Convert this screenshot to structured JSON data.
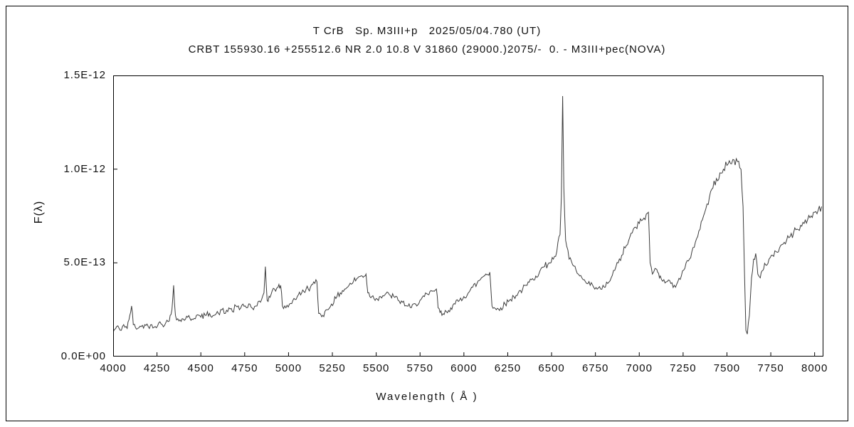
{
  "header": {
    "title": "T CrB   Sp. M3III+p   2025/05/04.780 (UT)",
    "subtitle": "CRBT 155930.16 +255512.6 NR 2.0 10.8 V 31860 (29000.)2075/-  0. - M3III+pec(NOVA)"
  },
  "axes": {
    "x_label": "Wavelength ( Å )",
    "y_label": "F(λ)",
    "x_ticks": [
      4000,
      4250,
      4500,
      4750,
      5000,
      5250,
      5500,
      5750,
      6000,
      6250,
      6500,
      6750,
      7000,
      7250,
      7500,
      7750,
      8000
    ],
    "y_ticks": [
      0,
      0.5,
      1.0,
      1.5
    ],
    "y_tick_labels": [
      "0.0E+00",
      "5.0E-13",
      "1.0E-12",
      "1.5E-12"
    ]
  },
  "chart_data": {
    "type": "line",
    "title": "T CrB   Sp. M3III+p   2025/05/04.780 (UT)",
    "subtitle": "CRBT 155930.16 +255512.6 NR 2.0 10.8 V 31860 (29000.)2075/-  0. - M3III+pec(NOVA)",
    "xlabel": "Wavelength (Å)",
    "ylabel": "F(λ)",
    "xlim": [
      4000,
      8050
    ],
    "ylim_scaled": [
      0,
      1.5
    ],
    "y_scale": 1e-12,
    "grid": false,
    "legend": "none",
    "line_color": "#3c3c3c",
    "noise_amplitude": 0.013,
    "noise_seed": 42,
    "sample_step": 6,
    "annotations": [
      "H-alpha emission spike near 6563 Å reaching ~1.39e-12",
      "TiO band-head sawtooth drops near 4960, 5170, 5450, 5850, 6160, 7055 Å",
      "Deep absorption near 7610 Å down to ~1.2e-13"
    ],
    "series": [
      {
        "name": "spectrum",
        "points": [
          [
            4000,
            0.13
          ],
          [
            4020,
            0.16
          ],
          [
            4040,
            0.14
          ],
          [
            4060,
            0.17
          ],
          [
            4080,
            0.15
          ],
          [
            4095,
            0.22
          ],
          [
            4105,
            0.27
          ],
          [
            4115,
            0.17
          ],
          [
            4140,
            0.15
          ],
          [
            4160,
            0.16
          ],
          [
            4180,
            0.17
          ],
          [
            4200,
            0.16
          ],
          [
            4220,
            0.17
          ],
          [
            4240,
            0.16
          ],
          [
            4260,
            0.18
          ],
          [
            4280,
            0.17
          ],
          [
            4300,
            0.18
          ],
          [
            4320,
            0.19
          ],
          [
            4335,
            0.25
          ],
          [
            4345,
            0.38
          ],
          [
            4355,
            0.22
          ],
          [
            4375,
            0.19
          ],
          [
            4400,
            0.2
          ],
          [
            4425,
            0.21
          ],
          [
            4450,
            0.2
          ],
          [
            4475,
            0.22
          ],
          [
            4500,
            0.21
          ],
          [
            4525,
            0.22
          ],
          [
            4550,
            0.23
          ],
          [
            4575,
            0.22
          ],
          [
            4600,
            0.23
          ],
          [
            4620,
            0.25
          ],
          [
            4640,
            0.23
          ],
          [
            4660,
            0.26
          ],
          [
            4680,
            0.24
          ],
          [
            4700,
            0.27
          ],
          [
            4720,
            0.25
          ],
          [
            4740,
            0.28
          ],
          [
            4760,
            0.26
          ],
          [
            4780,
            0.28
          ],
          [
            4800,
            0.25
          ],
          [
            4820,
            0.27
          ],
          [
            4840,
            0.29
          ],
          [
            4860,
            0.34
          ],
          [
            4868,
            0.48
          ],
          [
            4878,
            0.3
          ],
          [
            4900,
            0.33
          ],
          [
            4920,
            0.36
          ],
          [
            4940,
            0.37
          ],
          [
            4955,
            0.38
          ],
          [
            4965,
            0.27
          ],
          [
            4985,
            0.26
          ],
          [
            5005,
            0.28
          ],
          [
            5025,
            0.3
          ],
          [
            5050,
            0.32
          ],
          [
            5075,
            0.34
          ],
          [
            5100,
            0.36
          ],
          [
            5125,
            0.37
          ],
          [
            5150,
            0.39
          ],
          [
            5162,
            0.4
          ],
          [
            5172,
            0.23
          ],
          [
            5195,
            0.22
          ],
          [
            5220,
            0.25
          ],
          [
            5245,
            0.28
          ],
          [
            5270,
            0.31
          ],
          [
            5295,
            0.34
          ],
          [
            5320,
            0.36
          ],
          [
            5345,
            0.38
          ],
          [
            5370,
            0.4
          ],
          [
            5395,
            0.42
          ],
          [
            5420,
            0.43
          ],
          [
            5442,
            0.44
          ],
          [
            5452,
            0.34
          ],
          [
            5475,
            0.32
          ],
          [
            5500,
            0.31
          ],
          [
            5525,
            0.32
          ],
          [
            5550,
            0.33
          ],
          [
            5575,
            0.33
          ],
          [
            5600,
            0.32
          ],
          [
            5625,
            0.3
          ],
          [
            5650,
            0.29
          ],
          [
            5675,
            0.27
          ],
          [
            5700,
            0.26
          ],
          [
            5725,
            0.28
          ],
          [
            5750,
            0.3
          ],
          [
            5775,
            0.32
          ],
          [
            5800,
            0.33
          ],
          [
            5825,
            0.35
          ],
          [
            5843,
            0.36
          ],
          [
            5853,
            0.26
          ],
          [
            5875,
            0.22
          ],
          [
            5900,
            0.24
          ],
          [
            5925,
            0.26
          ],
          [
            5950,
            0.28
          ],
          [
            5975,
            0.3
          ],
          [
            6000,
            0.32
          ],
          [
            6025,
            0.34
          ],
          [
            6050,
            0.37
          ],
          [
            6075,
            0.39
          ],
          [
            6100,
            0.42
          ],
          [
            6125,
            0.44
          ],
          [
            6148,
            0.45
          ],
          [
            6160,
            0.27
          ],
          [
            6185,
            0.25
          ],
          [
            6210,
            0.26
          ],
          [
            6235,
            0.28
          ],
          [
            6260,
            0.3
          ],
          [
            6285,
            0.32
          ],
          [
            6310,
            0.34
          ],
          [
            6335,
            0.36
          ],
          [
            6360,
            0.38
          ],
          [
            6385,
            0.41
          ],
          [
            6410,
            0.43
          ],
          [
            6435,
            0.46
          ],
          [
            6460,
            0.48
          ],
          [
            6485,
            0.5
          ],
          [
            6510,
            0.52
          ],
          [
            6530,
            0.56
          ],
          [
            6548,
            0.65
          ],
          [
            6556,
            0.85
          ],
          [
            6563,
            1.39
          ],
          [
            6570,
            0.9
          ],
          [
            6580,
            0.62
          ],
          [
            6600,
            0.52
          ],
          [
            6620,
            0.49
          ],
          [
            6640,
            0.46
          ],
          [
            6660,
            0.43
          ],
          [
            6680,
            0.41
          ],
          [
            6700,
            0.39
          ],
          [
            6720,
            0.38
          ],
          [
            6740,
            0.37
          ],
          [
            6760,
            0.36
          ],
          [
            6780,
            0.36
          ],
          [
            6800,
            0.37
          ],
          [
            6820,
            0.39
          ],
          [
            6840,
            0.42
          ],
          [
            6860,
            0.46
          ],
          [
            6880,
            0.5
          ],
          [
            6900,
            0.54
          ],
          [
            6920,
            0.58
          ],
          [
            6940,
            0.62
          ],
          [
            6960,
            0.66
          ],
          [
            6980,
            0.69
          ],
          [
            7000,
            0.71
          ],
          [
            7020,
            0.73
          ],
          [
            7040,
            0.76
          ],
          [
            7052,
            0.77
          ],
          [
            7062,
            0.5
          ],
          [
            7075,
            0.44
          ],
          [
            7090,
            0.47
          ],
          [
            7105,
            0.45
          ],
          [
            7120,
            0.43
          ],
          [
            7140,
            0.41
          ],
          [
            7160,
            0.4
          ],
          [
            7180,
            0.39
          ],
          [
            7200,
            0.38
          ],
          [
            7220,
            0.4
          ],
          [
            7240,
            0.43
          ],
          [
            7260,
            0.47
          ],
          [
            7280,
            0.51
          ],
          [
            7300,
            0.56
          ],
          [
            7320,
            0.61
          ],
          [
            7340,
            0.67
          ],
          [
            7360,
            0.73
          ],
          [
            7380,
            0.79
          ],
          [
            7400,
            0.85
          ],
          [
            7420,
            0.9
          ],
          [
            7440,
            0.95
          ],
          [
            7460,
            0.98
          ],
          [
            7480,
            1.0
          ],
          [
            7500,
            1.02
          ],
          [
            7520,
            1.03
          ],
          [
            7540,
            1.05
          ],
          [
            7560,
            1.04
          ],
          [
            7580,
            1.0
          ],
          [
            7592,
            0.8
          ],
          [
            7600,
            0.45
          ],
          [
            7608,
            0.14
          ],
          [
            7616,
            0.12
          ],
          [
            7628,
            0.22
          ],
          [
            7640,
            0.42
          ],
          [
            7652,
            0.52
          ],
          [
            7664,
            0.55
          ],
          [
            7676,
            0.44
          ],
          [
            7690,
            0.42
          ],
          [
            7705,
            0.46
          ],
          [
            7720,
            0.49
          ],
          [
            7740,
            0.52
          ],
          [
            7760,
            0.54
          ],
          [
            7780,
            0.56
          ],
          [
            7800,
            0.58
          ],
          [
            7820,
            0.6
          ],
          [
            7840,
            0.62
          ],
          [
            7860,
            0.64
          ],
          [
            7880,
            0.66
          ],
          [
            7900,
            0.68
          ],
          [
            7920,
            0.7
          ],
          [
            7940,
            0.71
          ],
          [
            7960,
            0.73
          ],
          [
            7980,
            0.75
          ],
          [
            8000,
            0.77
          ],
          [
            8020,
            0.78
          ],
          [
            8040,
            0.8
          ]
        ]
      }
    ]
  }
}
